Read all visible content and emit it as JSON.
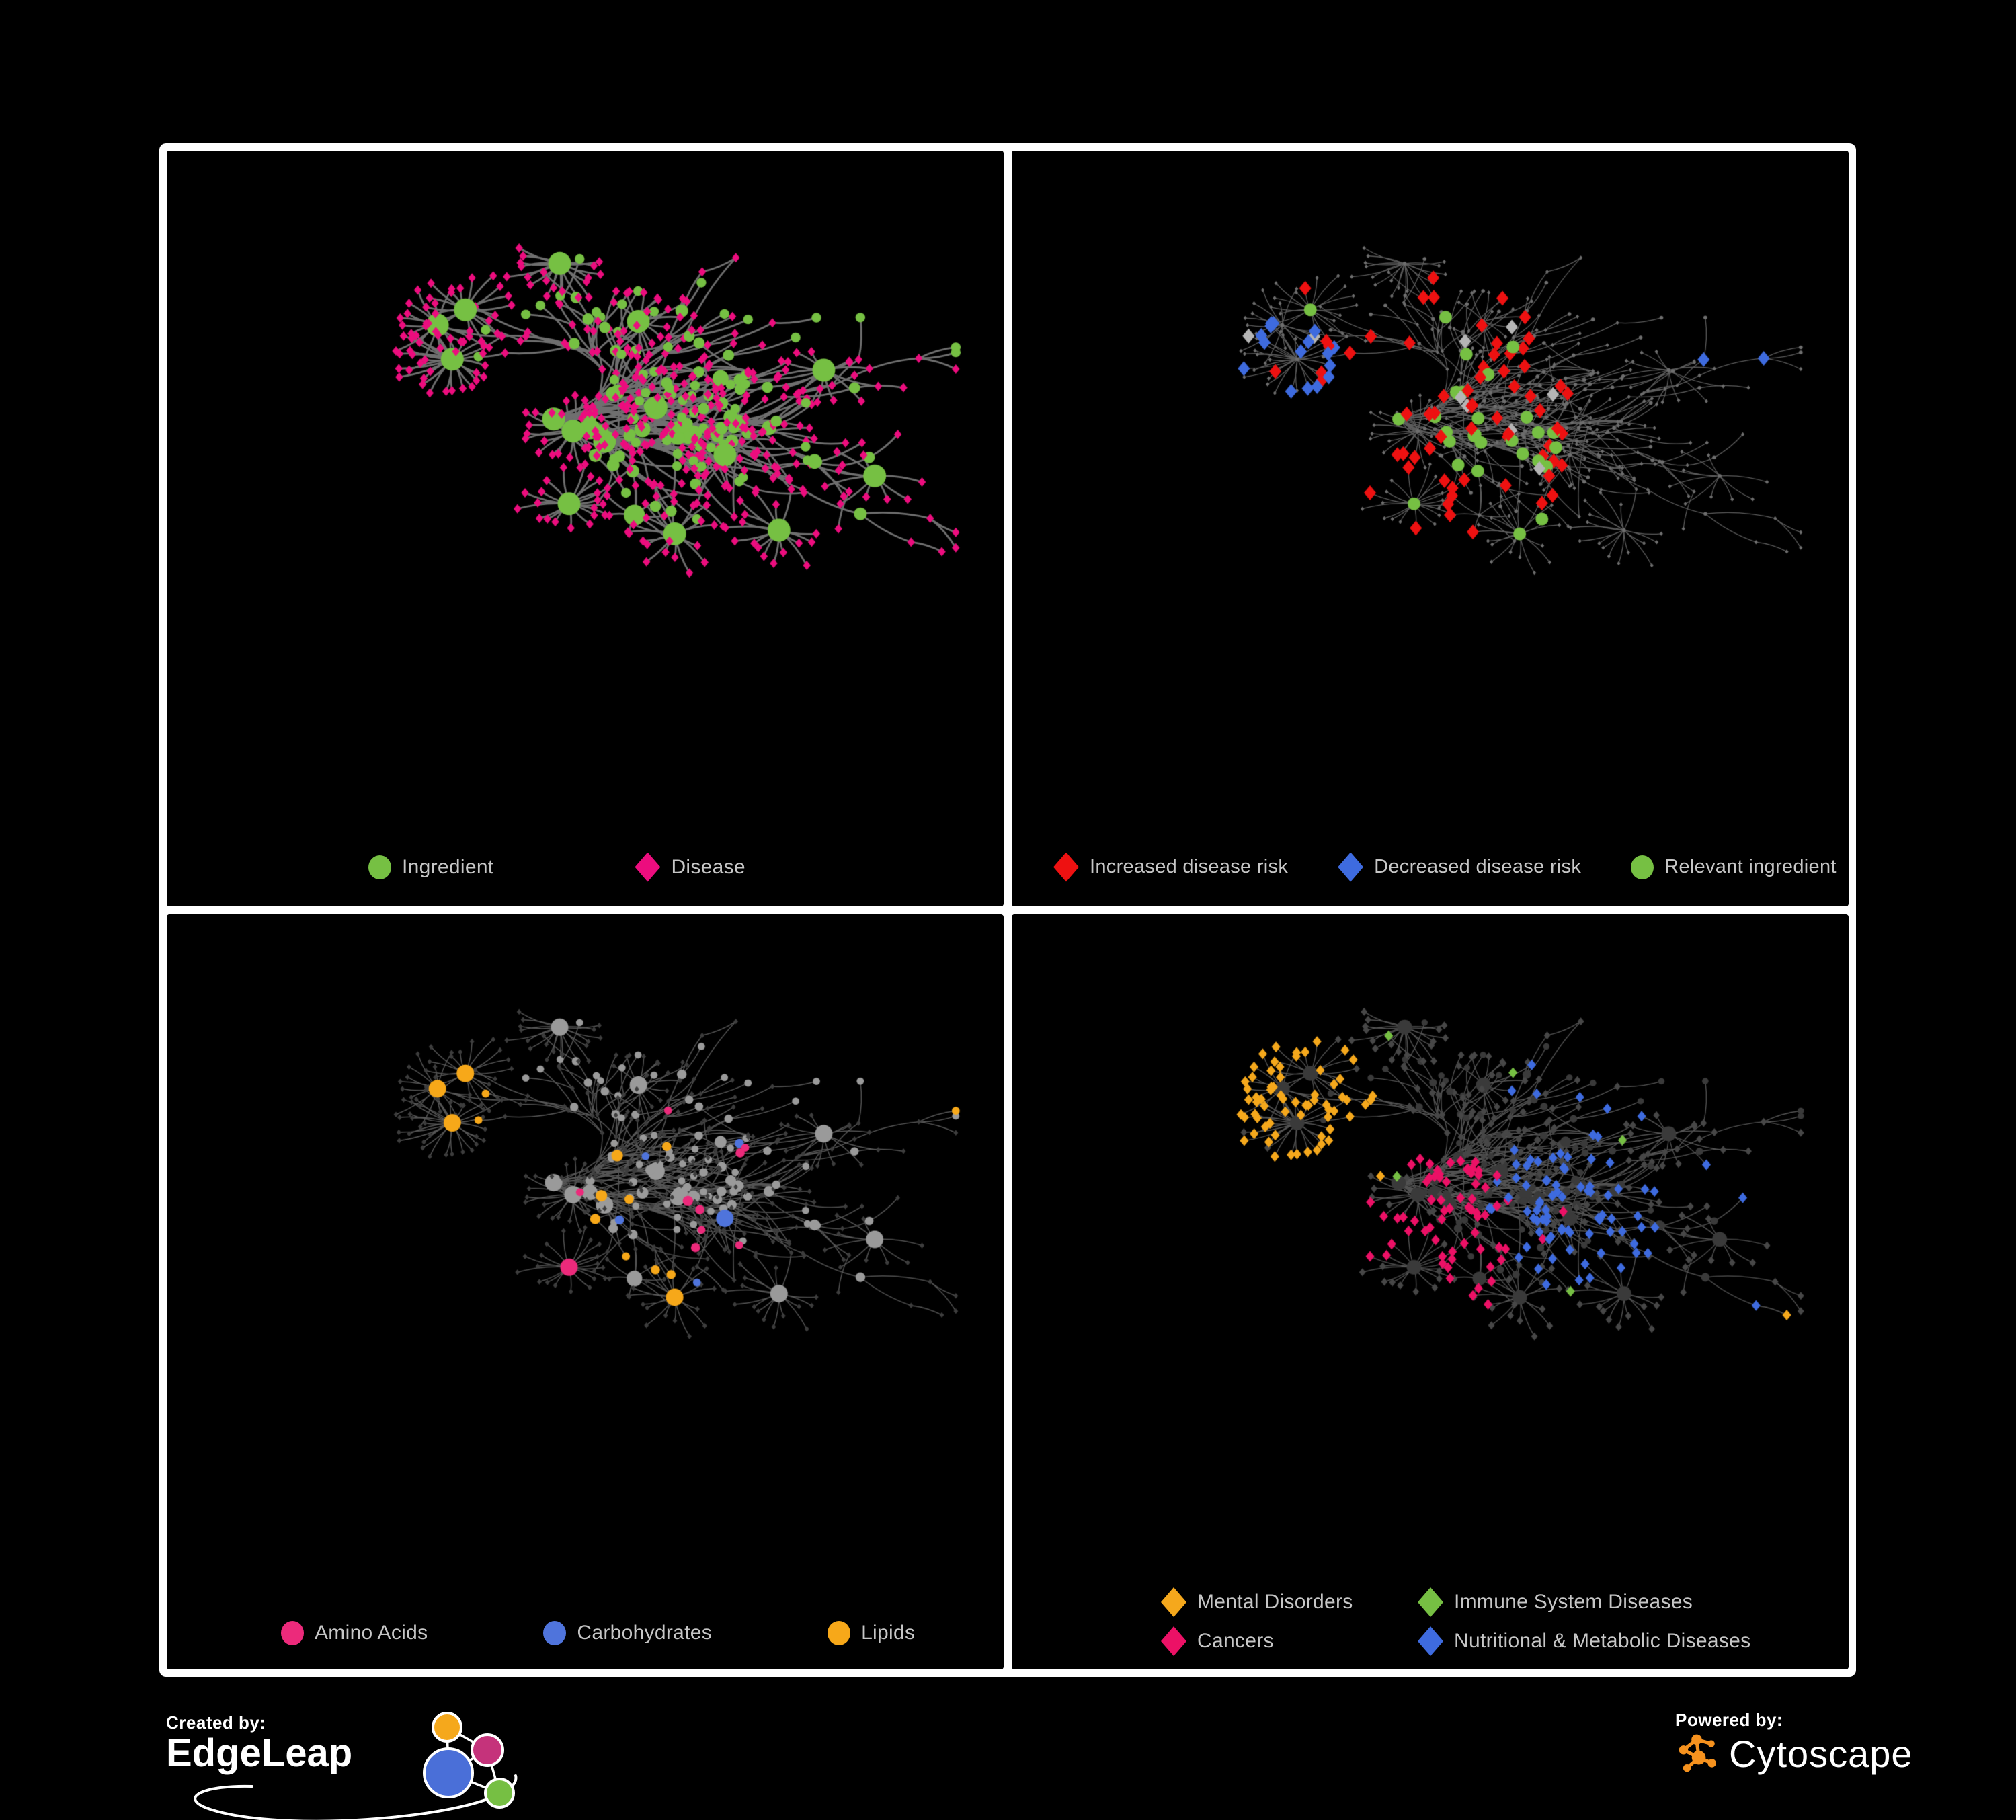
{
  "figure": {
    "background": "#000000",
    "frame_color": "#ffffff",
    "legend_text_color": "#C6C6C6"
  },
  "panels": [
    {
      "name": "ingredient-disease-network",
      "legend": [
        {
          "marker": "circle",
          "color": "#76C043",
          "label": "Ingredient"
        },
        {
          "marker": "diamond",
          "color": "#EC0D7E",
          "label": "Disease"
        }
      ],
      "style": {
        "edge": "#6F6F6F",
        "edge_width": 2.8,
        "circle": "#76C043",
        "diamond": "#EC0D7E"
      }
    },
    {
      "name": "disease-risk-network",
      "legend": [
        {
          "marker": "diamond",
          "color": "#EE1111",
          "label": "Increased disease risk"
        },
        {
          "marker": "diamond",
          "color": "#3E6BDF",
          "label": "Decreased disease risk"
        },
        {
          "marker": "circle",
          "color": "#76C043",
          "label": "Relevant ingredient"
        }
      ],
      "style": {
        "edge": "#5C5C5C",
        "edge_width": 1.3,
        "circle": "#6E6E6E",
        "diamond": "#6E6E6E",
        "highlight_red": "#EE1111",
        "highlight_blue": "#3E6BDF",
        "highlight_gray": "#B5B5B5",
        "highlight_green": "#76C043"
      }
    },
    {
      "name": "nutrient-class-network",
      "legend": [
        {
          "marker": "circle",
          "color": "#EC2A7B",
          "label": "Amino Acids"
        },
        {
          "marker": "circle",
          "color": "#4F74DC",
          "label": "Carbohydrates"
        },
        {
          "marker": "circle",
          "color": "#F7A819",
          "label": "Lipids"
        }
      ],
      "style": {
        "edge": "#545454",
        "edge_width": 1.5,
        "circle": "#9A9A9A",
        "diamond": "#3D3D3D",
        "highlight_pink": "#EC2A7B",
        "highlight_blue": "#4F74DC",
        "highlight_orange": "#F7A819"
      }
    },
    {
      "name": "disease-class-network",
      "legend": [
        {
          "marker": "diamond",
          "color": "#F5A81C",
          "label": "Mental Disorders"
        },
        {
          "marker": "diamond",
          "color": "#76BF43",
          "label": "Immune System Diseases"
        },
        {
          "marker": "diamond",
          "color": "#EC1166",
          "label": "Cancers"
        },
        {
          "marker": "diamond",
          "color": "#3E6BDF",
          "label": "Nutritional & Metabolic Diseases"
        }
      ],
      "style": {
        "edge": "#525252",
        "edge_width": 1.4,
        "circle": "#3A3A3A",
        "diamond": "#474747",
        "highlight_orange": "#F5A81C",
        "highlight_green": "#76BF43",
        "highlight_pink": "#EC1166",
        "highlight_blue": "#3E6BDF"
      }
    }
  ],
  "footer": {
    "created_by": {
      "prefix": "Created by:",
      "brand": "EdgeLeap"
    },
    "powered_by": {
      "prefix": "Powered by:",
      "brand": "Cytoscape",
      "logo_color": "#F6921E"
    },
    "edgeleap_logo_colors": {
      "orange": "#F5A81C",
      "magenta": "#C5337B",
      "blue": "#4A6FD8",
      "green": "#76BF43"
    }
  }
}
